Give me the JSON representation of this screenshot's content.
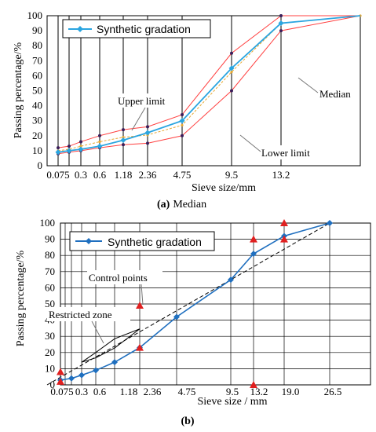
{
  "chart_data": [
    {
      "type": "line",
      "caption_label": "(a)",
      "caption_text": "Median",
      "xlabel": "Sieve size/mm",
      "ylabel": "Passing percentage/%",
      "x": [
        "0.075",
        "0.15",
        "0.3",
        "0.6",
        "1.18",
        "2.36",
        "4.75",
        "9.5",
        "13.2",
        "16"
      ],
      "x_tick_labels": [
        "0.075",
        "0.3",
        "0.6",
        "1.18",
        "2.36",
        "4.75",
        "9.5",
        "13.2"
      ],
      "ylim": [
        0,
        100
      ],
      "y_ticks": [
        0,
        10,
        20,
        30,
        40,
        50,
        60,
        70,
        80,
        90,
        100
      ],
      "grid": "vertical",
      "legend": "top-left",
      "series": [
        {
          "name": "Synthetic gradation",
          "color": "#2aa5e0",
          "marker": "diamond",
          "values": [
            9,
            10,
            11,
            13,
            17,
            22,
            30,
            65,
            95,
            100
          ]
        },
        {
          "name": "",
          "color": "#ff4040",
          "marker": "none",
          "values": [
            12,
            13,
            16,
            20,
            24,
            26,
            34,
            75,
            100,
            100
          ]
        },
        {
          "name": "",
          "color": "#ff4040",
          "marker": "none",
          "values": [
            8,
            9,
            10,
            12,
            14,
            15,
            20,
            50,
            90,
            100
          ]
        },
        {
          "name": "",
          "color": "#e6a832",
          "marker": "dot",
          "dashed": true,
          "values": [
            10,
            11,
            13,
            16,
            19,
            20.5,
            27,
            62.5,
            95,
            100
          ]
        }
      ],
      "annotations": [
        "Upper limit",
        "Median",
        "Lower limit"
      ]
    },
    {
      "type": "line",
      "caption_label": "(b)",
      "caption_text": "",
      "xlabel": "Sieve size / mm",
      "ylabel": "Passing percentage/%",
      "x": [
        "0.075",
        "0.15",
        "0.3",
        "0.6",
        "1.18",
        "2.36",
        "4.75",
        "9.5",
        "13.2",
        "19.0",
        "26.5"
      ],
      "x_tick_labels": [
        "0.075",
        "0.3",
        "0.6",
        "1.18",
        "2.36",
        "4.75",
        "9.5",
        "13.2",
        "19.0",
        "26.5"
      ],
      "ylim": [
        0,
        100
      ],
      "y_ticks": [
        0,
        10,
        20,
        30,
        40,
        50,
        60,
        70,
        80,
        90,
        100
      ],
      "grid": "both",
      "legend": "top-left",
      "series": [
        {
          "name": "Synthetic gradation",
          "color": "#1f6fbf",
          "marker": "diamond",
          "values": [
            3,
            4,
            6,
            9,
            14,
            23,
            42,
            65,
            81,
            92,
            100
          ]
        }
      ],
      "maximum_density_line": {
        "x_from": "0.075",
        "y_from": 0,
        "x_to": "26.5",
        "y_to": 100
      },
      "control_points": [
        {
          "x": "0.075",
          "y": 2
        },
        {
          "x": "0.075",
          "y": 8
        },
        {
          "x": "2.36",
          "y": 23
        },
        {
          "x": "2.36",
          "y": 49
        },
        {
          "x": "13.2",
          "y": 0
        },
        {
          "x": "13.2",
          "y": 90
        },
        {
          "x": "19.0",
          "y": 90
        },
        {
          "x": "19.0",
          "y": 100
        }
      ],
      "restricted_zone": {
        "x": [
          "0.3",
          "0.6",
          "1.18",
          "2.36",
          "1.18",
          "0.6",
          "0.3"
        ],
        "y": [
          14,
          20,
          28.5,
          34.6,
          22.8,
          16.7,
          14
        ]
      },
      "annotations": [
        "Control points",
        "Restricted zone"
      ]
    }
  ]
}
